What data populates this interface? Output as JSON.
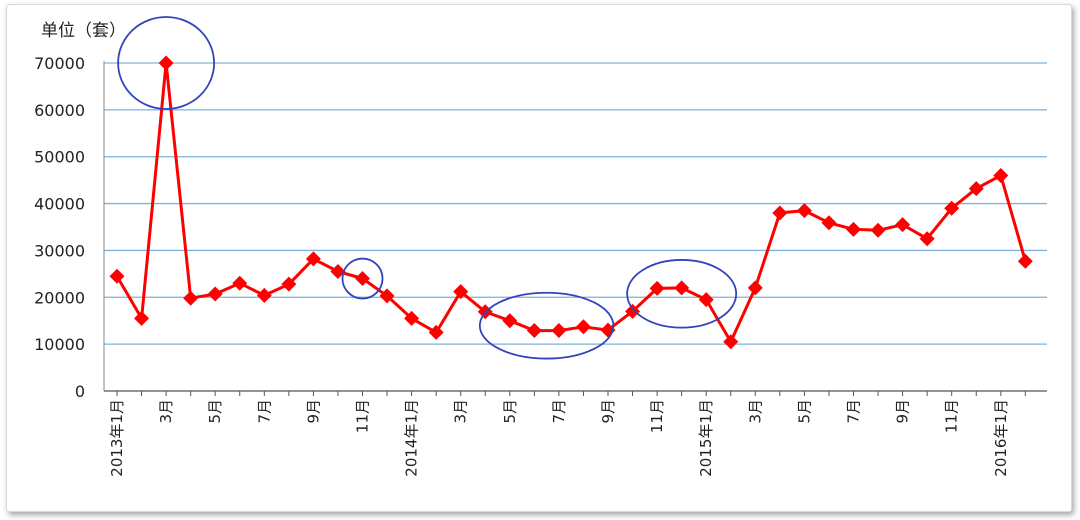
{
  "chart_data": {
    "type": "line",
    "unit_label": "单位（套）",
    "y_ticks": [
      0,
      10000,
      20000,
      30000,
      40000,
      50000,
      60000,
      70000
    ],
    "ylim": [
      0,
      70000
    ],
    "x_tick_labels": [
      "2013年1月",
      "",
      "3月",
      "",
      "5月",
      "",
      "7月",
      "",
      "9月",
      "",
      "11月",
      "",
      "2014年1月",
      "",
      "3月",
      "",
      "5月",
      "",
      "7月",
      "",
      "9月",
      "",
      "11月",
      "",
      "2015年1月",
      "",
      "3月",
      "",
      "5月",
      "",
      "7月",
      "",
      "9月",
      "",
      "11月",
      "",
      "2016年1月",
      ""
    ],
    "series": [
      {
        "color": "#ff0000",
        "values": [
          24500,
          15500,
          70000,
          19800,
          20700,
          23000,
          20400,
          22800,
          28200,
          25500,
          24000,
          20300,
          15500,
          12500,
          21200,
          16900,
          15000,
          12900,
          12900,
          13700,
          13000,
          17000,
          21900,
          22000,
          19500,
          10500,
          22000,
          38000,
          38500,
          35900,
          34500,
          34300,
          35500,
          32500,
          39000,
          43200,
          46000,
          27700
        ]
      }
    ],
    "grid": true,
    "gridline_color": "#7fb3d9",
    "annotation_color": "#3344bb",
    "annotations": [
      {
        "shape": "ellipse",
        "months": [
          2
        ]
      },
      {
        "shape": "ellipse",
        "months": [
          10
        ]
      },
      {
        "shape": "ellipse",
        "months": [
          16,
          17,
          18,
          19
        ]
      },
      {
        "shape": "ellipse",
        "months": [
          22,
          23,
          24
        ]
      }
    ]
  }
}
